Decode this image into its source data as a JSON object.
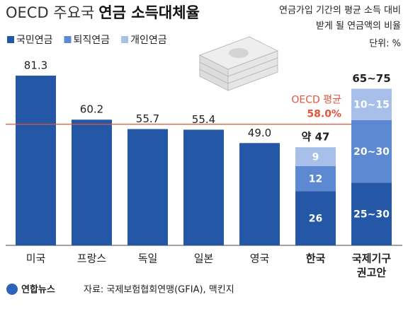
{
  "chart_data": {
    "type": "stacked_bar",
    "title": [
      "OECD 주요국",
      "연금 소득대체율"
    ],
    "subtitle": [
      "연금가입 기간의 평균 소득 대비",
      "받게 될 연금액의 비율"
    ],
    "unit": "단위: %",
    "categories": [
      [
        "미국"
      ],
      [
        "프랑스"
      ],
      [
        "독일"
      ],
      [
        "일본"
      ],
      [
        "영국"
      ],
      [
        "한국"
      ],
      [
        "국제기구",
        "권고안"
      ]
    ],
    "highlight_categories": [
      5,
      6
    ],
    "series": [
      {
        "name": "국민연금",
        "color": "#2557a7",
        "values": [
          81.3,
          60.2,
          55.7,
          55.4,
          49.0,
          26,
          30
        ],
        "value_labels": [
          "81.3",
          "60.2",
          "55.7",
          "55.4",
          "49.0",
          "26",
          "25~30"
        ]
      },
      {
        "name": "퇴직연금",
        "color": "#5c89d1",
        "values": [
          null,
          null,
          null,
          null,
          null,
          12,
          30
        ],
        "value_labels": [
          null,
          null,
          null,
          null,
          null,
          "12",
          "20~30"
        ]
      },
      {
        "name": "개인연금",
        "color": "#a8c0e9",
        "values": [
          null,
          null,
          null,
          null,
          null,
          9,
          15
        ],
        "value_labels": [
          null,
          null,
          null,
          null,
          null,
          "9",
          "10~15"
        ]
      }
    ],
    "total_labels": [
      null,
      null,
      null,
      null,
      null,
      "약 47",
      "65~75"
    ],
    "reference": {
      "label": "OECD 평균",
      "value": 58.0,
      "value_label": "58.0%",
      "color": "#e2543b"
    },
    "ylim": [
      0,
      85
    ],
    "source": "자료: 국제보험협회연맹(GFIA), 맥킨지",
    "logo": "연합뉴스"
  }
}
